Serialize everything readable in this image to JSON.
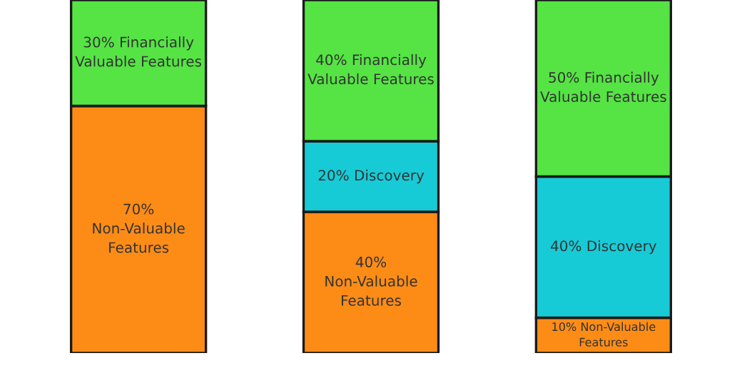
{
  "chart_data": {
    "type": "bar",
    "stacked": true,
    "categories": [
      null,
      null,
      null
    ],
    "ylim": [
      0,
      100
    ],
    "tick_labels": false,
    "grid": false,
    "legend": false,
    "series": [
      {
        "color": "#fd8c17",
        "values": [
          70,
          40,
          10
        ],
        "value_labels": [
          "70%\nNon-Valuable\nFeatures",
          "40%\nNon-Valuable\nFeatures",
          "10% Non-Valuable\nFeatures"
        ]
      },
      {
        "color": "#17cbd6",
        "values": [
          null,
          20,
          40
        ],
        "value_labels": [
          null,
          "20% Discovery",
          "40% Discovery"
        ]
      },
      {
        "color": "#55e444",
        "values": [
          30,
          40,
          50
        ],
        "value_labels": [
          "30% Financially\nValuable Features",
          "40% Financially\nValuable Features",
          "50% Financially\nValuable Features"
        ]
      }
    ]
  }
}
